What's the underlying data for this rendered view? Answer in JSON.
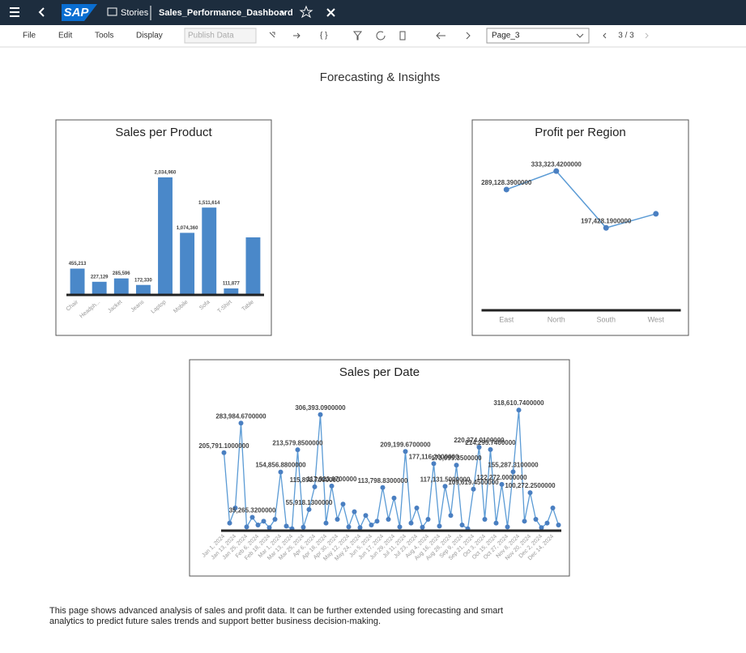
{
  "header": {
    "logo": "SAP",
    "stories": "Stories",
    "story_name": "Sales_Performance_Dashboard"
  },
  "toolbar": {
    "menus": [
      "File",
      "Edit",
      "Tools",
      "Display"
    ],
    "publish": "Publish Data",
    "page_select": "Page_3",
    "pager": "3 / 3"
  },
  "page_title": "Forecasting & Insights",
  "footer_text": "This page shows advanced analysis of sales and profit data. It can be further extended using forecasting and smart analytics to predict future sales trends and support better business decision-making.",
  "chart_data": [
    {
      "type": "bar",
      "title": "Sales per Product",
      "categories": [
        "Chair",
        "Headph...",
        "Jacket",
        "Jeans",
        "Laptop",
        "Mobile",
        "Sofa",
        "T-Shirt",
        "Table"
      ],
      "values": [
        455213,
        227129,
        285596,
        172330,
        2034960,
        1074360,
        1511614,
        111877,
        996000
      ],
      "value_labels": [
        "455,213",
        "227,129",
        "285,596",
        "172,330",
        "2,034,960",
        "1,074,360",
        "1,511,614",
        "111,877",
        null
      ],
      "color": "#4a88c9",
      "ylim": [
        0,
        2300000
      ]
    },
    {
      "type": "line",
      "title": "Profit per Region",
      "categories": [
        "East",
        "North",
        "South",
        "West"
      ],
      "values": [
        289128.39,
        333323.42,
        197428.19,
        231000
      ],
      "value_labels": [
        "289,128.3900000",
        "333,323.4200000",
        "197,428.1900000",
        null
      ],
      "color": "#5b9bd5",
      "ylim": [
        0,
        355000
      ]
    },
    {
      "type": "line",
      "title": "Sales per Date",
      "categories": [
        "Jan 1, 2024",
        null,
        "Jan 13, 2024",
        null,
        "Jan 25, 2024",
        null,
        "Feb 6, 2024",
        null,
        "Feb 18, 2024",
        null,
        "Mar 1, 2024",
        null,
        "Mar 13, 2024",
        null,
        "Mar 25, 2024",
        null,
        "Apr 6, 2024",
        null,
        "Apr 18, 2024",
        null,
        "Apr 30, 2024",
        null,
        "May 12, 2024",
        null,
        "May 24, 2024",
        null,
        "Jun 5, 2024",
        null,
        "Jun 17, 2024",
        null,
        "Jun 29, 2024",
        null,
        "Jul 11, 2024",
        null,
        "Jul 23, 2024",
        null,
        "Aug 4, 2024",
        null,
        "Aug 16, 2024",
        null,
        "Aug 28, 2024",
        null,
        "Sep 9, 2024",
        null,
        "Sep 21, 2024",
        null,
        "Oct 3, 2024",
        null,
        "Oct 15, 2024",
        null,
        "Oct 27, 2024",
        null,
        "Nov 8, 2024",
        null,
        "Nov 20, 2024",
        null,
        "Dec 2, 2024",
        null,
        "Dec 14, 2024",
        null
      ],
      "values": [
        205791.1,
        20000,
        60000,
        283984.67,
        10000,
        35265.32,
        15000,
        25000,
        8000,
        30000,
        154856.88,
        12000,
        5000,
        213579.85,
        9000,
        55918.13,
        115898.7,
        306393.09,
        20000,
        117923.07,
        30000,
        70000,
        10000,
        50000,
        8000,
        40000,
        15000,
        25000,
        113798.83,
        30000,
        86000,
        10000,
        209199.67,
        20000,
        60000,
        9000,
        30000,
        177116.2,
        12000,
        117131.5,
        40000,
        173099.35,
        15000,
        5000,
        109619.45,
        220374.01,
        30000,
        214295.74,
        20000,
        122272.0,
        10000,
        155287.31,
        318610.74,
        25000,
        100272.25,
        30000,
        8000,
        20000,
        60000,
        15000
      ],
      "value_labels": [
        "205,791.1000000",
        null,
        null,
        "283,984.6700000",
        null,
        "35,265.3200000",
        null,
        null,
        null,
        null,
        "154,856.8800000",
        null,
        null,
        "213,579.8500000",
        null,
        "55,918.1300000",
        "115,898.7000000",
        "306,393.0900000",
        null,
        "117,923.0700000",
        null,
        null,
        null,
        null,
        null,
        null,
        null,
        null,
        "113,798.8300000",
        null,
        null,
        null,
        "209,199.6700000",
        null,
        null,
        null,
        null,
        "177,116.2000000",
        null,
        "117,131.5000000",
        null,
        "173,099.3500000",
        null,
        null,
        "109,619.4500000",
        "220,374.0100000",
        null,
        "214,295.7400000",
        null,
        "122,272.0000000",
        null,
        "155,287.3100000",
        "318,610.7400000",
        null,
        "100,272.2500000",
        null,
        null,
        null,
        null,
        null
      ],
      "color": "#5b9bd5",
      "ylim": [
        0,
        353000
      ]
    }
  ]
}
